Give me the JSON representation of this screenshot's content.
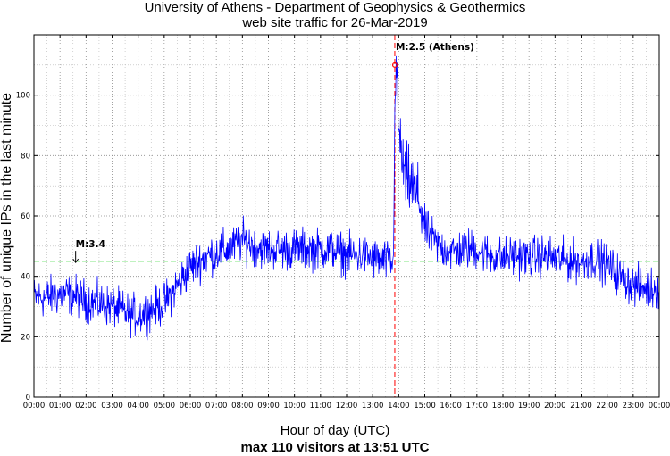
{
  "chart_data": {
    "type": "line",
    "title": "University of Athens - Department of Geophysics & Geothermics",
    "subtitle": "web site traffic for 26-Mar-2019",
    "xlabel": "Hour of day (UTC)",
    "ylabel": "Number of unique IPs in the last minute",
    "footer": "max 110 visitors at 13:51 UTC",
    "x_unit": "hour of day (UTC)",
    "xlim": [
      0,
      24
    ],
    "ylim": [
      0,
      120
    ],
    "x_ticks": [
      "00:00",
      "01:00",
      "02:00",
      "03:00",
      "04:00",
      "05:00",
      "06:00",
      "07:00",
      "08:00",
      "09:00",
      "10:00",
      "11:00",
      "12:00",
      "13:00",
      "14:00",
      "15:00",
      "16:00",
      "17:00",
      "18:00",
      "19:00",
      "20:00",
      "21:00",
      "22:00",
      "23:00",
      "00:00"
    ],
    "y_ticks": [
      0,
      20,
      40,
      60,
      80,
      100
    ],
    "grid": true,
    "series": [
      {
        "color": "#0000ff",
        "x": [
          0,
          0.5,
          1,
          1.5,
          2,
          2.5,
          3,
          3.5,
          4,
          4.5,
          5,
          5.5,
          6,
          6.5,
          7,
          7.5,
          8,
          8.5,
          9,
          9.5,
          10,
          10.5,
          11,
          11.5,
          12,
          12.5,
          13,
          13.5,
          13.8,
          13.85,
          13.9,
          14,
          14.2,
          14.5,
          14.8,
          15,
          15.5,
          16,
          16.5,
          17,
          17.5,
          18,
          18.5,
          19,
          19.5,
          20,
          20.5,
          21,
          21.5,
          22,
          22.5,
          23,
          23.5,
          24
        ],
        "y": [
          33,
          33,
          34,
          34,
          32,
          31,
          30,
          28,
          27,
          29,
          31,
          37,
          43,
          46,
          48,
          49,
          52,
          50,
          49,
          49,
          49,
          49,
          49,
          49,
          47,
          47,
          46,
          45,
          44,
          95,
          110,
          88,
          74,
          70,
          65,
          56,
          50,
          48,
          49,
          49,
          47,
          46,
          47,
          46,
          47,
          46,
          45,
          45,
          46,
          44,
          40,
          37,
          36,
          36
        ]
      }
    ],
    "reference_lines": [
      {
        "orientation": "horizontal",
        "y": 45,
        "color": "#00cc00"
      },
      {
        "orientation": "vertical",
        "x": 13.85,
        "color": "#ff0000"
      }
    ],
    "annotations": [
      {
        "label": "M:3.4",
        "x": 1.6,
        "y": 44
      },
      {
        "label": "M:2.5 (Athens)",
        "x": 13.85,
        "y": 110,
        "marker_color": "#ff0000"
      }
    ]
  }
}
